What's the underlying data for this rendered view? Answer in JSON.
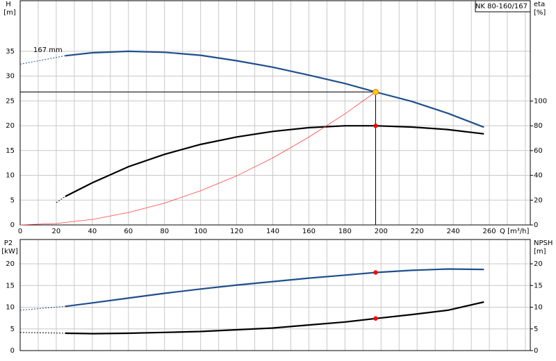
{
  "chart_data": [
    {
      "type": "line",
      "annotation": "NK 80-160/167",
      "curve_label": "167 mm",
      "ylabel": "H",
      "yunit": "[m]",
      "y2label": "eta",
      "y2unit": "[%]",
      "xlabel": "Q [m³/h]",
      "xlim": [
        0,
        282.7
      ],
      "xticks": [
        0,
        20,
        40,
        60,
        80,
        100,
        120,
        140,
        160,
        180,
        200,
        220,
        240,
        260
      ],
      "xgrid": [
        0,
        10,
        20,
        30,
        40,
        50,
        60,
        70,
        80,
        90,
        100,
        110,
        120,
        130,
        140,
        150,
        160,
        170,
        180,
        190,
        200,
        210,
        220,
        230,
        240,
        250,
        260,
        270,
        280
      ],
      "ylim": [
        0,
        45.2
      ],
      "yticks": [
        0,
        5,
        10,
        15,
        20,
        25,
        30,
        35
      ],
      "y2lim": [
        0,
        181
      ],
      "y2ticks": [
        0,
        20,
        40,
        60,
        80,
        100
      ],
      "series": [
        {
          "color": "#1f4e8c",
          "dashed": true,
          "x": [
            0,
            25
          ],
          "values": [
            32.4,
            34.1
          ]
        },
        {
          "color": "#1f4e8c",
          "x": [
            25,
            40,
            60,
            80,
            100,
            120,
            140,
            160,
            180,
            197,
            217,
            237,
            257
          ],
          "values": [
            34.1,
            34.7,
            35.0,
            34.8,
            34.2,
            33.1,
            31.8,
            30.2,
            28.5,
            26.8,
            24.9,
            22.5,
            19.7
          ]
        },
        {
          "color": "#000000",
          "dashed": true,
          "axis": "y2",
          "x": [
            20,
            25
          ],
          "values": [
            18,
            23
          ]
        },
        {
          "color": "#000000",
          "axis": "y2",
          "x": [
            25,
            40,
            60,
            80,
            100,
            120,
            140,
            160,
            180,
            197,
            217,
            237,
            257
          ],
          "values": [
            23,
            34,
            47,
            57,
            65,
            71,
            75.5,
            78.5,
            80,
            80,
            79,
            77,
            73.5
          ]
        },
        {
          "color": "#ff4040",
          "thin": true,
          "x": [
            0,
            20,
            40,
            60,
            80,
            100,
            120,
            140,
            160,
            180,
            197
          ],
          "values": [
            0,
            0.3,
            1.1,
            2.5,
            4.4,
            6.9,
            9.9,
            13.5,
            17.7,
            22.4,
            26.8
          ]
        }
      ],
      "points": [
        {
          "x": 197,
          "y": 26.8,
          "color": "#ffcc00",
          "stroke": "#e08000",
          "guides": true
        },
        {
          "x": 197,
          "y": 80,
          "axis": "y2",
          "color": "#ff0000"
        }
      ]
    },
    {
      "type": "line",
      "ylabel": "P2",
      "yunit": "[kW]",
      "y2label": "NPSH",
      "y2unit": "[m]",
      "xlim": [
        0,
        282.7
      ],
      "xgrid": [
        0,
        10,
        20,
        30,
        40,
        50,
        60,
        70,
        80,
        90,
        100,
        110,
        120,
        130,
        140,
        150,
        160,
        170,
        180,
        190,
        200,
        210,
        220,
        230,
        240,
        250,
        260,
        270,
        280
      ],
      "ylim": [
        0,
        25.6
      ],
      "yticks": [
        0,
        5,
        10,
        15,
        20
      ],
      "y2lim": [
        0,
        25.6
      ],
      "y2ticks": [
        0,
        5,
        10,
        15,
        20
      ],
      "series": [
        {
          "color": "#1f4e8c",
          "dashed": true,
          "x": [
            0,
            25
          ],
          "values": [
            9.3,
            10.2
          ]
        },
        {
          "color": "#1f4e8c",
          "x": [
            25,
            40,
            60,
            80,
            100,
            120,
            140,
            160,
            180,
            197,
            217,
            237,
            257
          ],
          "values": [
            10.2,
            11.0,
            12.1,
            13.2,
            14.2,
            15.1,
            15.9,
            16.7,
            17.4,
            18.0,
            18.5,
            18.8,
            18.7
          ]
        },
        {
          "color": "#000000",
          "dashed": true,
          "axis": "y2",
          "x": [
            0,
            25
          ],
          "values": [
            4.2,
            4.0
          ]
        },
        {
          "color": "#000000",
          "axis": "y2",
          "x": [
            25,
            40,
            60,
            80,
            100,
            120,
            140,
            160,
            180,
            197,
            217,
            237,
            257
          ],
          "values": [
            4.0,
            3.9,
            4.0,
            4.2,
            4.4,
            4.8,
            5.2,
            5.9,
            6.6,
            7.4,
            8.3,
            9.3,
            11.2
          ]
        }
      ],
      "points": [
        {
          "x": 197,
          "y": 18.0,
          "color": "#ff0000"
        },
        {
          "x": 197,
          "y": 7.4,
          "axis": "y2",
          "color": "#ff0000"
        }
      ]
    }
  ]
}
